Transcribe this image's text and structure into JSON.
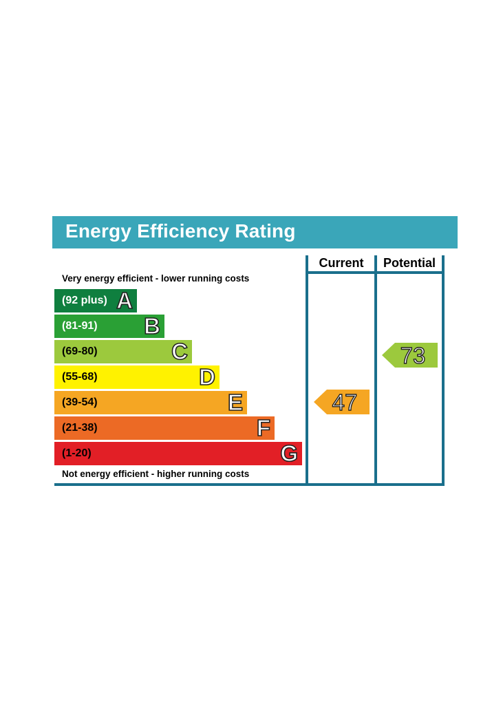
{
  "title": "Energy Efficiency Rating",
  "columns": {
    "current": "Current",
    "potential": "Potential"
  },
  "top_caption": "Very energy efficient - lower running costs",
  "bottom_caption": "Not energy efficient - higher running costs",
  "bands": [
    {
      "letter": "A",
      "range": "(92 plus)",
      "color": "#0f7f3f",
      "text_color": "#ffffff"
    },
    {
      "letter": "B",
      "range": "(81-91)",
      "color": "#2aa035",
      "text_color": "#ffffff"
    },
    {
      "letter": "C",
      "range": "(69-80)",
      "color": "#9cc93d",
      "text_color": "#000000"
    },
    {
      "letter": "D",
      "range": "(55-68)",
      "color": "#fff200",
      "text_color": "#000000"
    },
    {
      "letter": "E",
      "range": "(39-54)",
      "color": "#f5a623",
      "text_color": "#000000"
    },
    {
      "letter": "F",
      "range": "(21-38)",
      "color": "#ec6a25",
      "text_color": "#000000"
    },
    {
      "letter": "G",
      "range": "(1-20)",
      "color": "#e21f26",
      "text_color": "#000000"
    }
  ],
  "ratings": {
    "current": {
      "value": "47",
      "band": "E",
      "color": "#f5a623"
    },
    "potential": {
      "value": "73",
      "band": "C",
      "color": "#9cc93d"
    }
  }
}
